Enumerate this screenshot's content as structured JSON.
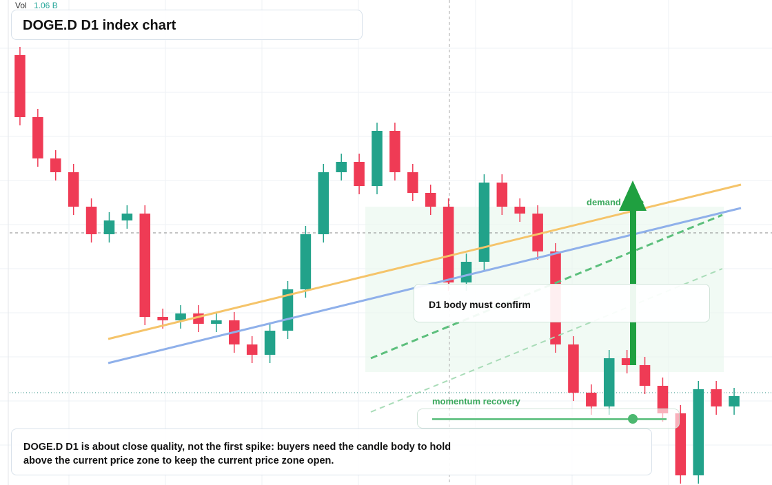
{
  "chart_data": {
    "type": "candlestick",
    "title": "DOGE.D D1 index chart",
    "volume_label": "Vol",
    "volume_value": "1.06 B",
    "annotations": {
      "confirm": "D1 body must confirm",
      "demand": "demand zone",
      "momentum": "momentum recovery",
      "caption": "DOGE.D D1 is about close quality, not the first spike: buyers need the candle body to hold above the current price zone to keep the current price zone open."
    },
    "up_color": "#22a28a",
    "down_color": "#ef3b55",
    "ylim": [
      0,
      704
    ],
    "open": [
      624,
      534,
      474,
      454,
      404,
      364,
      384,
      394,
      244,
      239,
      249,
      234,
      239,
      204,
      189,
      224,
      284,
      364,
      454,
      469,
      434,
      514,
      454,
      424,
      404,
      294,
      324,
      439,
      404,
      394,
      339,
      204,
      134,
      114,
      184,
      174,
      144,
      104,
      14,
      139,
      114
    ],
    "high": [
      636,
      546,
      486,
      466,
      416,
      396,
      406,
      406,
      256,
      261,
      261,
      251,
      251,
      216,
      236,
      296,
      376,
      466,
      481,
      481,
      526,
      526,
      466,
      436,
      416,
      336,
      451,
      451,
      416,
      406,
      351,
      216,
      146,
      196,
      196,
      186,
      156,
      116,
      151,
      151,
      141
    ],
    "low": [
      522,
      462,
      442,
      392,
      352,
      352,
      372,
      232,
      227,
      227,
      222,
      222,
      192,
      177,
      177,
      212,
      272,
      352,
      442,
      422,
      422,
      442,
      412,
      392,
      282,
      282,
      312,
      392,
      382,
      327,
      192,
      122,
      102,
      102,
      162,
      132,
      92,
      2,
      2,
      102,
      102
    ],
    "close": [
      534,
      474,
      454,
      404,
      364,
      384,
      394,
      244,
      239,
      249,
      234,
      239,
      204,
      189,
      224,
      284,
      364,
      454,
      469,
      434,
      514,
      454,
      424,
      404,
      294,
      324,
      439,
      404,
      394,
      339,
      204,
      134,
      114,
      184,
      174,
      144,
      104,
      14,
      139,
      114,
      129
    ]
  }
}
